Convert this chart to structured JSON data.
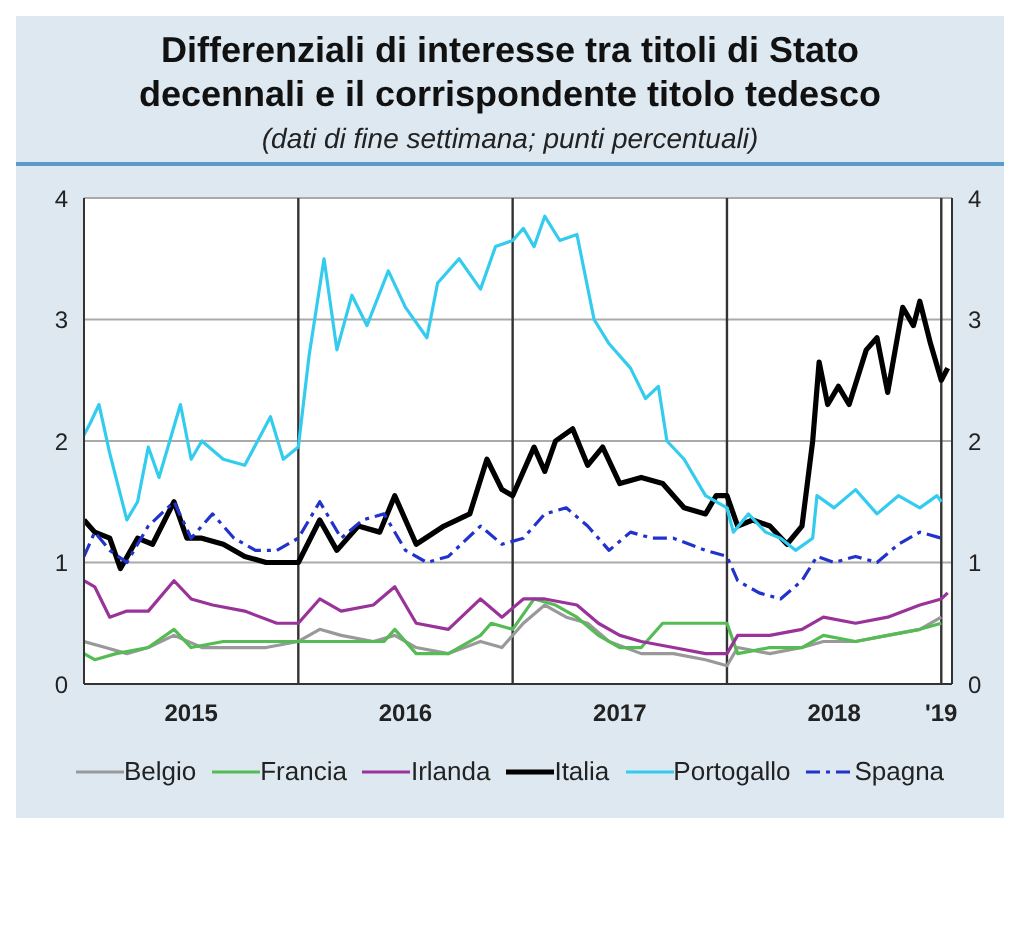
{
  "chart_data": {
    "type": "line",
    "title": "Differenziali di interesse tra titoli di Stato decennali e il corrispondente titolo tedesco",
    "subtitle": "(dati di fine settimana; punti percentuali)",
    "xlim": [
      2015,
      2019.05
    ],
    "xticks": [
      {
        "value": 2015.5,
        "label": "2015"
      },
      {
        "value": 2016.5,
        "label": "2016"
      },
      {
        "value": 2017.5,
        "label": "2017"
      },
      {
        "value": 2018.5,
        "label": "2018"
      },
      {
        "value": 2019,
        "label": "'19"
      }
    ],
    "ylim": [
      0,
      4
    ],
    "yticks": [
      0,
      1,
      2,
      3,
      4
    ],
    "y2lim": [
      0,
      4
    ],
    "y2ticks": [
      0,
      1,
      2,
      3,
      4
    ],
    "grid": "y",
    "legend": "bottom",
    "marker": "none",
    "ref_lines": [
      {
        "axis": "x",
        "value": 2016,
        "color": "#333333"
      },
      {
        "axis": "x",
        "value": 2017,
        "color": "#333333"
      },
      {
        "axis": "x",
        "value": 2018,
        "color": "#333333"
      },
      {
        "axis": "x",
        "value": 2019,
        "color": "#333333"
      }
    ],
    "series": [
      {
        "name": "Belgio",
        "color": "#999999",
        "line_style": "solid",
        "x": [
          2015,
          2015.1,
          2015.2,
          2015.3,
          2015.42,
          2015.55,
          2015.7,
          2015.85,
          2016,
          2016.1,
          2016.2,
          2016.35,
          2016.45,
          2016.55,
          2016.7,
          2016.85,
          2016.95,
          2017.05,
          2017.15,
          2017.25,
          2017.35,
          2017.45,
          2017.6,
          2017.75,
          2017.9,
          2018,
          2018.05,
          2018.2,
          2018.35,
          2018.45,
          2018.6,
          2018.75,
          2018.9,
          2019
        ],
        "values": [
          0.35,
          0.3,
          0.25,
          0.3,
          0.4,
          0.3,
          0.3,
          0.3,
          0.35,
          0.45,
          0.4,
          0.35,
          0.4,
          0.3,
          0.25,
          0.35,
          0.3,
          0.5,
          0.65,
          0.55,
          0.5,
          0.35,
          0.25,
          0.25,
          0.2,
          0.15,
          0.3,
          0.25,
          0.3,
          0.35,
          0.35,
          0.4,
          0.45,
          0.55
        ]
      },
      {
        "name": "Francia",
        "color": "#55bb55",
        "line_style": "solid",
        "x": [
          2015,
          2015.05,
          2015.15,
          2015.3,
          2015.42,
          2015.5,
          2015.65,
          2015.85,
          2016,
          2016.1,
          2016.25,
          2016.4,
          2016.45,
          2016.55,
          2016.7,
          2016.85,
          2016.9,
          2017,
          2017.1,
          2017.2,
          2017.3,
          2017.4,
          2017.5,
          2017.6,
          2017.7,
          2017.85,
          2018,
          2018.05,
          2018.2,
          2018.35,
          2018.45,
          2018.6,
          2018.75,
          2018.9,
          2019
        ],
        "values": [
          0.25,
          0.2,
          0.25,
          0.3,
          0.45,
          0.3,
          0.35,
          0.35,
          0.35,
          0.35,
          0.35,
          0.35,
          0.45,
          0.25,
          0.25,
          0.4,
          0.5,
          0.45,
          0.7,
          0.65,
          0.55,
          0.4,
          0.3,
          0.3,
          0.5,
          0.5,
          0.5,
          0.25,
          0.3,
          0.3,
          0.4,
          0.35,
          0.4,
          0.45,
          0.5
        ]
      },
      {
        "name": "Irlanda",
        "color": "#993399",
        "line_style": "solid",
        "x": [
          2015,
          2015.05,
          2015.12,
          2015.2,
          2015.3,
          2015.42,
          2015.5,
          2015.6,
          2015.75,
          2015.9,
          2016,
          2016.1,
          2016.2,
          2016.35,
          2016.45,
          2016.55,
          2016.7,
          2016.85,
          2016.95,
          2017.05,
          2017.15,
          2017.3,
          2017.4,
          2017.5,
          2017.6,
          2017.75,
          2017.9,
          2018,
          2018.05,
          2018.2,
          2018.35,
          2018.45,
          2018.6,
          2018.75,
          2018.9,
          2019,
          2019.03
        ],
        "values": [
          0.85,
          0.8,
          0.55,
          0.6,
          0.6,
          0.85,
          0.7,
          0.65,
          0.6,
          0.5,
          0.5,
          0.7,
          0.6,
          0.65,
          0.8,
          0.5,
          0.45,
          0.7,
          0.55,
          0.7,
          0.7,
          0.65,
          0.5,
          0.4,
          0.35,
          0.3,
          0.25,
          0.25,
          0.4,
          0.4,
          0.45,
          0.55,
          0.5,
          0.55,
          0.65,
          0.7,
          0.75
        ]
      },
      {
        "name": "Italia",
        "color": "#000000",
        "line_style": "solid",
        "x": [
          2015,
          2015.05,
          2015.12,
          2015.17,
          2015.25,
          2015.32,
          2015.42,
          2015.48,
          2015.55,
          2015.65,
          2015.75,
          2015.85,
          2015.95,
          2016,
          2016.1,
          2016.18,
          2016.28,
          2016.38,
          2016.45,
          2016.55,
          2016.68,
          2016.8,
          2016.88,
          2016.95,
          2017,
          2017.1,
          2017.15,
          2017.2,
          2017.28,
          2017.35,
          2017.42,
          2017.5,
          2017.6,
          2017.7,
          2017.8,
          2017.9,
          2017.95,
          2018,
          2018.05,
          2018.12,
          2018.2,
          2018.28,
          2018.35,
          2018.4,
          2018.43,
          2018.47,
          2018.52,
          2018.57,
          2018.65,
          2018.7,
          2018.75,
          2018.82,
          2018.87,
          2018.9,
          2018.95,
          2019,
          2019.03
        ],
        "values": [
          1.35,
          1.25,
          1.2,
          0.95,
          1.2,
          1.15,
          1.5,
          1.2,
          1.2,
          1.15,
          1.05,
          1,
          1,
          1,
          1.35,
          1.1,
          1.3,
          1.25,
          1.55,
          1.15,
          1.3,
          1.4,
          1.85,
          1.6,
          1.55,
          1.95,
          1.75,
          2,
          2.1,
          1.8,
          1.95,
          1.65,
          1.7,
          1.65,
          1.45,
          1.4,
          1.55,
          1.55,
          1.3,
          1.35,
          1.3,
          1.15,
          1.3,
          2,
          2.65,
          2.3,
          2.45,
          2.3,
          2.75,
          2.85,
          2.4,
          3.1,
          2.95,
          3.15,
          2.8,
          2.5,
          2.6
        ]
      },
      {
        "name": "Portogallo",
        "color": "#33ccee",
        "line_style": "solid",
        "x": [
          2015,
          2015.03,
          2015.07,
          2015.12,
          2015.2,
          2015.25,
          2015.3,
          2015.35,
          2015.45,
          2015.5,
          2015.55,
          2015.65,
          2015.75,
          2015.87,
          2015.93,
          2016,
          2016.05,
          2016.12,
          2016.18,
          2016.25,
          2016.32,
          2016.42,
          2016.5,
          2016.6,
          2016.65,
          2016.75,
          2016.85,
          2016.92,
          2017,
          2017.05,
          2017.1,
          2017.15,
          2017.22,
          2017.3,
          2017.38,
          2017.45,
          2017.55,
          2017.62,
          2017.68,
          2017.72,
          2017.8,
          2017.9,
          2018,
          2018.03,
          2018.1,
          2018.18,
          2018.25,
          2018.32,
          2018.4,
          2018.42,
          2018.5,
          2018.6,
          2018.7,
          2018.8,
          2018.9,
          2018.98,
          2019
        ],
        "values": [
          2.05,
          2.15,
          2.3,
          1.9,
          1.35,
          1.5,
          1.95,
          1.7,
          2.3,
          1.85,
          2,
          1.85,
          1.8,
          2.2,
          1.85,
          1.95,
          2.7,
          3.5,
          2.75,
          3.2,
          2.95,
          3.4,
          3.1,
          2.85,
          3.3,
          3.5,
          3.25,
          3.6,
          3.65,
          3.75,
          3.6,
          3.85,
          3.65,
          3.7,
          3,
          2.8,
          2.6,
          2.35,
          2.45,
          2,
          1.85,
          1.55,
          1.45,
          1.25,
          1.4,
          1.25,
          1.2,
          1.1,
          1.2,
          1.55,
          1.45,
          1.6,
          1.4,
          1.55,
          1.45,
          1.55,
          1.5
        ]
      },
      {
        "name": "Spagna",
        "color": "#2233cc",
        "line_style": "dashed",
        "x": [
          2015,
          2015.05,
          2015.12,
          2015.2,
          2015.3,
          2015.42,
          2015.5,
          2015.6,
          2015.7,
          2015.8,
          2015.9,
          2016,
          2016.1,
          2016.2,
          2016.3,
          2016.4,
          2016.5,
          2016.6,
          2016.7,
          2016.85,
          2016.95,
          2017.05,
          2017.15,
          2017.25,
          2017.35,
          2017.45,
          2017.55,
          2017.65,
          2017.75,
          2017.9,
          2018,
          2018.05,
          2018.15,
          2018.25,
          2018.35,
          2018.42,
          2018.5,
          2018.6,
          2018.7,
          2018.8,
          2018.9,
          2019
        ],
        "values": [
          1.05,
          1.25,
          1.1,
          1,
          1.3,
          1.5,
          1.2,
          1.4,
          1.2,
          1.1,
          1.1,
          1.2,
          1.5,
          1.2,
          1.35,
          1.4,
          1.1,
          1,
          1.05,
          1.3,
          1.15,
          1.2,
          1.4,
          1.45,
          1.3,
          1.1,
          1.25,
          1.2,
          1.2,
          1.1,
          1.05,
          0.85,
          0.75,
          0.7,
          0.85,
          1.05,
          1,
          1.05,
          1,
          1.15,
          1.25,
          1.2
        ]
      }
    ]
  }
}
